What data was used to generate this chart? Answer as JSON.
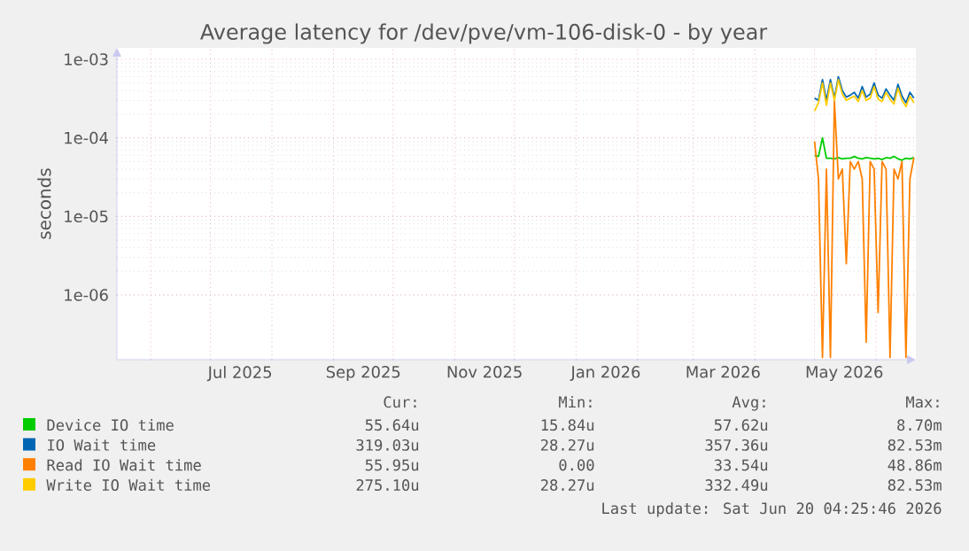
{
  "chart_data": {
    "type": "line",
    "title": "Average latency for /dev/pve/vm-106-disk-0 - by year",
    "ylabel": "seconds",
    "x": [
      "2026-05-01",
      "2026-05-03",
      "2026-05-05",
      "2026-05-07",
      "2026-05-09",
      "2026-05-11",
      "2026-05-13",
      "2026-05-15",
      "2026-05-17",
      "2026-05-19",
      "2026-05-21",
      "2026-05-23",
      "2026-05-25",
      "2026-05-27",
      "2026-05-29",
      "2026-05-31",
      "2026-06-02",
      "2026-06-04",
      "2026-06-06",
      "2026-06-08",
      "2026-06-10",
      "2026-06-12",
      "2026-06-14",
      "2026-06-16",
      "2026-06-18",
      "2026-06-20"
    ],
    "series": [
      {
        "name": "Device IO time",
        "color": "#00cc00",
        "values": [
          6e-05,
          5.8e-05,
          0.0001,
          5.5e-05,
          5.5e-05,
          5.4e-05,
          5.6e-05,
          5.4e-05,
          5.5e-05,
          5.5e-05,
          5.8e-05,
          5.5e-05,
          5.4e-05,
          5.6e-05,
          5.5e-05,
          5.4e-05,
          5.5e-05,
          5.3e-05,
          5.6e-05,
          5.5e-05,
          5.8e-05,
          5.4e-05,
          5.2e-05,
          5.5e-05,
          5.4e-05,
          5.6e-05
        ]
      },
      {
        "name": "IO Wait time",
        "color": "#0066b3",
        "values": [
          0.00032,
          0.0003,
          0.00055,
          0.0003,
          0.00055,
          0.00032,
          0.0006,
          0.0004,
          0.00033,
          0.00035,
          0.00038,
          0.00032,
          0.00045,
          0.00033,
          0.00036,
          0.0005,
          0.00035,
          0.00032,
          0.00042,
          0.00035,
          0.0003,
          0.00048,
          0.00034,
          0.00028,
          0.00038,
          0.00032
        ]
      },
      {
        "name": "Read IO Wait time",
        "color": "#ff8000",
        "values": [
          9e-05,
          3e-05,
          1.6e-07,
          4e-05,
          1.6e-07,
          0.0003,
          3e-05,
          4e-05,
          2.5e-06,
          5e-05,
          4e-05,
          5e-05,
          3e-05,
          2.5e-07,
          5e-05,
          4e-05,
          6e-07,
          5e-05,
          4e-05,
          1.6e-07,
          4e-05,
          3e-05,
          5e-05,
          1.6e-07,
          3e-05,
          5.6e-05
        ]
      },
      {
        "name": "Write IO Wait time",
        "color": "#ffcc00",
        "values": [
          0.00022,
          0.00028,
          0.0005,
          0.00026,
          0.0005,
          0.0003,
          0.00055,
          0.00036,
          0.0003,
          0.00032,
          0.00034,
          0.00029,
          0.0004,
          0.0003,
          0.00032,
          0.00045,
          0.00031,
          0.00029,
          0.00038,
          0.00031,
          0.00027,
          0.00043,
          0.0003,
          0.00025,
          0.00034,
          0.00028
        ]
      }
    ],
    "xlim": [
      "2025-05-15",
      "2026-06-21"
    ],
    "xticks": [
      {
        "value": "2025-06-01",
        "label": null
      },
      {
        "value": "2025-07-01",
        "label": null
      },
      {
        "value": "2025-08-01",
        "label": null
      },
      {
        "value": "2025-09-01",
        "label": null
      },
      {
        "value": "2025-10-01",
        "label": null
      },
      {
        "value": "2025-11-01",
        "label": null
      },
      {
        "value": "2025-12-01",
        "label": null
      },
      {
        "value": "2026-01-01",
        "label": null
      },
      {
        "value": "2026-02-01",
        "label": null
      },
      {
        "value": "2026-03-01",
        "label": null
      },
      {
        "value": "2026-04-01",
        "label": null
      },
      {
        "value": "2026-05-01",
        "label": null
      },
      {
        "value": "2026-06-01",
        "label": null
      },
      {
        "value": "2025-07-16",
        "label": "Jul 2025"
      },
      {
        "value": "2025-09-16",
        "label": "Sep 2025"
      },
      {
        "value": "2025-11-16",
        "label": "Nov 2025"
      },
      {
        "value": "2026-01-16",
        "label": "Jan 2026"
      },
      {
        "value": "2026-03-16",
        "label": "Mar 2026"
      },
      {
        "value": "2026-05-16",
        "label": "May 2026"
      }
    ],
    "ylim": [
      1.5e-07,
      0.0014
    ],
    "yticks": [
      {
        "value": 1e-06,
        "label": "1e-06"
      },
      {
        "value": 1e-05,
        "label": "1e-05"
      },
      {
        "value": 0.0001,
        "label": "1e-04"
      },
      {
        "value": 0.001,
        "label": "1e-03"
      }
    ],
    "log": "y",
    "grid": true,
    "legend": "bottom",
    "annotations": [
      "Cur:",
      "Min:",
      "Avg:",
      "Max:",
      "55.64u",
      "15.84u",
      "57.62u",
      "8.70m",
      "319.03u",
      "28.27u",
      "357.36u",
      "82.53m",
      "55.95u",
      "0.00",
      "33.54u",
      "48.86m",
      "275.10u",
      "28.27u",
      "332.49u",
      "82.53m",
      "Last update: Sat Jun 20 04:25:46 2026"
    ]
  }
}
